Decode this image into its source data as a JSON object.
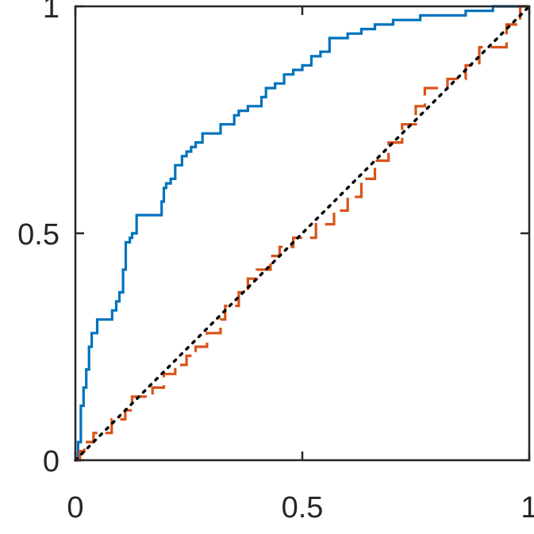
{
  "chart_data": {
    "type": "line",
    "xlim": [
      0,
      1
    ],
    "ylim": [
      0,
      1
    ],
    "xticks": [
      "0",
      "0.5",
      "1"
    ],
    "yticks": [
      "0",
      "0.5",
      "1"
    ],
    "box": true,
    "grid": false,
    "series": [
      {
        "color": "#0072BD",
        "style": "solid",
        "x": [
          0,
          0.006,
          0.006,
          0.012,
          0.012,
          0.018,
          0.018,
          0.024,
          0.024,
          0.03,
          0.03,
          0.036,
          0.036,
          0.048,
          0.048,
          0.081,
          0.081,
          0.09,
          0.09,
          0.097,
          0.097,
          0.105,
          0.105,
          0.111,
          0.111,
          0.12,
          0.12,
          0.125,
          0.125,
          0.135,
          0.135,
          0.19,
          0.19,
          0.195,
          0.195,
          0.2,
          0.2,
          0.21,
          0.21,
          0.22,
          0.22,
          0.235,
          0.235,
          0.245,
          0.245,
          0.255,
          0.255,
          0.265,
          0.265,
          0.28,
          0.28,
          0.32,
          0.32,
          0.35,
          0.35,
          0.36,
          0.36,
          0.38,
          0.38,
          0.41,
          0.41,
          0.42,
          0.42,
          0.44,
          0.44,
          0.46,
          0.46,
          0.48,
          0.48,
          0.5,
          0.5,
          0.52,
          0.52,
          0.54,
          0.54,
          0.56,
          0.56,
          0.6,
          0.6,
          0.63,
          0.63,
          0.66,
          0.66,
          0.7,
          0.7,
          0.76,
          0.76,
          0.86,
          0.86,
          0.92,
          0.92,
          1.0
        ],
        "y": [
          0,
          0,
          0.04,
          0.04,
          0.12,
          0.12,
          0.16,
          0.16,
          0.2,
          0.2,
          0.25,
          0.25,
          0.28,
          0.28,
          0.31,
          0.31,
          0.33,
          0.33,
          0.35,
          0.35,
          0.37,
          0.37,
          0.42,
          0.42,
          0.48,
          0.48,
          0.49,
          0.49,
          0.5,
          0.5,
          0.54,
          0.54,
          0.57,
          0.57,
          0.6,
          0.6,
          0.61,
          0.61,
          0.62,
          0.62,
          0.65,
          0.65,
          0.67,
          0.67,
          0.68,
          0.68,
          0.69,
          0.69,
          0.7,
          0.7,
          0.72,
          0.72,
          0.74,
          0.74,
          0.76,
          0.76,
          0.77,
          0.77,
          0.78,
          0.78,
          0.8,
          0.8,
          0.82,
          0.82,
          0.83,
          0.83,
          0.85,
          0.85,
          0.86,
          0.86,
          0.87,
          0.87,
          0.89,
          0.89,
          0.9,
          0.9,
          0.93,
          0.93,
          0.94,
          0.94,
          0.95,
          0.95,
          0.96,
          0.96,
          0.97,
          0.97,
          0.98,
          0.98,
          0.99,
          0.99,
          1.0,
          1.0
        ]
      },
      {
        "color": "#D95319",
        "style": "dashed",
        "x": [
          0,
          0.01,
          0.01,
          0.02,
          0.02,
          0.04,
          0.04,
          0.08,
          0.08,
          0.11,
          0.11,
          0.125,
          0.125,
          0.17,
          0.17,
          0.195,
          0.195,
          0.22,
          0.22,
          0.245,
          0.245,
          0.265,
          0.265,
          0.29,
          0.29,
          0.32,
          0.32,
          0.33,
          0.33,
          0.36,
          0.36,
          0.38,
          0.38,
          0.4,
          0.4,
          0.43,
          0.43,
          0.45,
          0.45,
          0.48,
          0.48,
          0.53,
          0.53,
          0.57,
          0.57,
          0.6,
          0.6,
          0.63,
          0.63,
          0.66,
          0.66,
          0.69,
          0.69,
          0.72,
          0.72,
          0.75,
          0.75,
          0.77,
          0.77,
          0.82,
          0.82,
          0.86,
          0.86,
          0.89,
          0.89,
          0.95,
          0.95,
          0.98,
          0.98,
          1.0
        ],
        "y": [
          0,
          0,
          0.02,
          0.02,
          0.04,
          0.04,
          0.06,
          0.06,
          0.09,
          0.09,
          0.11,
          0.11,
          0.14,
          0.14,
          0.16,
          0.16,
          0.19,
          0.19,
          0.21,
          0.21,
          0.23,
          0.23,
          0.25,
          0.25,
          0.28,
          0.28,
          0.31,
          0.31,
          0.34,
          0.34,
          0.37,
          0.37,
          0.4,
          0.4,
          0.42,
          0.42,
          0.45,
          0.45,
          0.47,
          0.47,
          0.49,
          0.49,
          0.52,
          0.52,
          0.55,
          0.55,
          0.58,
          0.58,
          0.62,
          0.62,
          0.66,
          0.66,
          0.7,
          0.7,
          0.74,
          0.74,
          0.78,
          0.78,
          0.82,
          0.82,
          0.84,
          0.84,
          0.87,
          0.87,
          0.91,
          0.91,
          0.96,
          0.96,
          1.0,
          1.0
        ]
      },
      {
        "color": "#000000",
        "style": "dotted",
        "x": [
          0,
          1
        ],
        "y": [
          0,
          1
        ]
      }
    ]
  }
}
